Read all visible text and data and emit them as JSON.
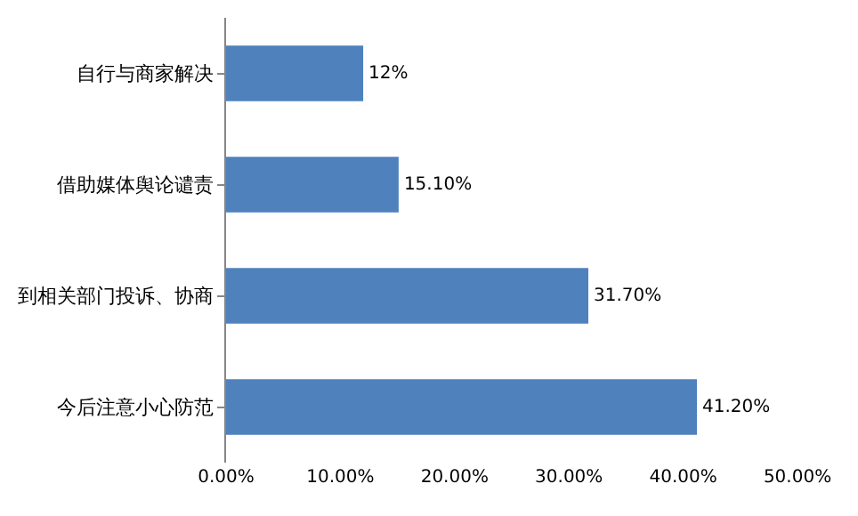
{
  "chart_data": {
    "type": "bar",
    "orientation": "horizontal",
    "categories": [
      "自行与商家解决",
      "借助媒体舆论谴责",
      "到相关部门投诉、协商",
      "今后注意小心防范"
    ],
    "values": [
      12,
      15.1,
      31.7,
      41.2
    ],
    "value_labels": [
      "12%",
      "15.10%",
      "31.70%",
      "41.20%"
    ],
    "color": "#4f81bd",
    "xlim": [
      0,
      50
    ],
    "xticks": [
      {
        "value": 0,
        "label": "0.00%"
      },
      {
        "value": 10,
        "label": "10.00%"
      },
      {
        "value": 20,
        "label": "20.00%"
      },
      {
        "value": 30,
        "label": "30.00%"
      },
      {
        "value": 40,
        "label": "40.00%"
      },
      {
        "value": 50,
        "label": "50.00%"
      }
    ]
  }
}
